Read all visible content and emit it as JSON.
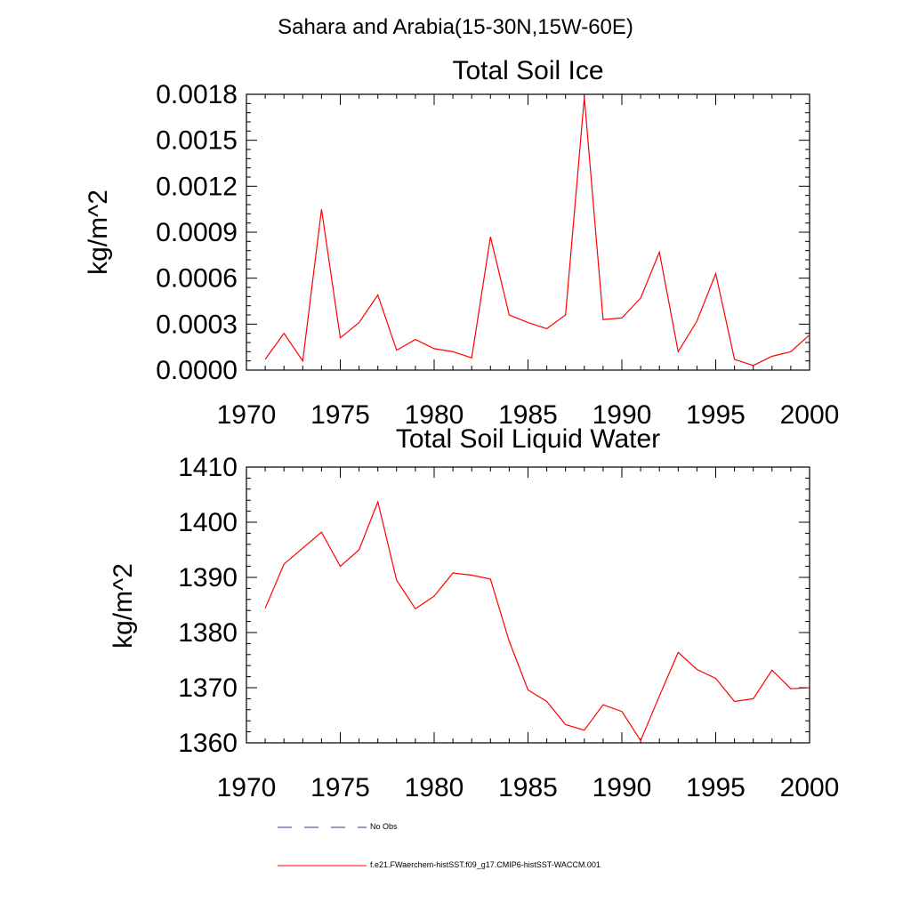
{
  "figure": {
    "title": "Sahara and Arabia(15-30N,15W-60E)"
  },
  "legend": [
    {
      "label": "No Obs",
      "color": "#333399",
      "dash": "dashed"
    },
    {
      "label": "f.e21.FWaerchem-histSST.f09_g17.CMIP6-histSST-WACCM.001",
      "color": "#ff0000",
      "dash": "solid"
    }
  ],
  "chart_data": [
    {
      "type": "line",
      "title": "Total Soil Ice",
      "xlabel": "",
      "ylabel": "kg/m^2",
      "xlim": [
        1970,
        2000
      ],
      "ylim": [
        0.0,
        0.0018
      ],
      "xticks": [
        1970,
        1975,
        1980,
        1985,
        1990,
        1995,
        2000
      ],
      "yticks": [
        "0.0000",
        "0.0003",
        "0.0006",
        "0.0009",
        "0.0012",
        "0.0015",
        "0.0018"
      ],
      "grid": false,
      "x": [
        1971,
        1972,
        1973,
        1974,
        1975,
        1976,
        1977,
        1978,
        1979,
        1980,
        1981,
        1982,
        1983,
        1984,
        1985,
        1986,
        1987,
        1988,
        1989,
        1990,
        1991,
        1992,
        1993,
        1994,
        1995,
        1996,
        1997,
        1998,
        1999,
        2000
      ],
      "series": [
        {
          "name": "f.e21.FWaerchem-histSST.f09_g17.CMIP6-histSST-WACCM.001",
          "color": "#ff0000",
          "values": [
            7e-05,
            0.00024,
            6e-05,
            0.00105,
            0.00021,
            0.00031,
            0.00049,
            0.00013,
            0.0002,
            0.00014,
            0.00012,
            8e-05,
            0.00087,
            0.00036,
            0.00031,
            0.00027,
            0.00036,
            0.00178,
            0.00033,
            0.00034,
            0.00047,
            0.00077,
            0.00012,
            0.00032,
            0.00063,
            7e-05,
            3e-05,
            9e-05,
            0.00012,
            0.00023
          ]
        }
      ]
    },
    {
      "type": "line",
      "title": "Total Soil Liquid Water",
      "xlabel": "",
      "ylabel": "kg/m^2",
      "xlim": [
        1970,
        2000
      ],
      "ylim": [
        1360,
        1410
      ],
      "xticks": [
        1970,
        1975,
        1980,
        1985,
        1990,
        1995,
        2000
      ],
      "yticks": [
        "1360",
        "1370",
        "1380",
        "1390",
        "1400",
        "1410"
      ],
      "grid": false,
      "x": [
        1971,
        1972,
        1973,
        1974,
        1975,
        1976,
        1977,
        1978,
        1979,
        1980,
        1981,
        1982,
        1983,
        1984,
        1985,
        1986,
        1987,
        1988,
        1989,
        1990,
        1991,
        1992,
        1993,
        1994,
        1995,
        1996,
        1997,
        1998,
        1999,
        2000
      ],
      "series": [
        {
          "name": "f.e21.FWaerchem-histSST.f09_g17.CMIP6-histSST-WACCM.001",
          "color": "#ff0000",
          "values": [
            1384.4,
            1392.4,
            1395.3,
            1398.2,
            1392.0,
            1395.0,
            1403.7,
            1389.5,
            1384.3,
            1386.6,
            1390.8,
            1390.4,
            1389.7,
            1378.4,
            1369.6,
            1367.5,
            1363.3,
            1362.3,
            1366.9,
            1365.7,
            1360.4,
            1368.5,
            1376.4,
            1373.3,
            1371.7,
            1367.5,
            1368.0,
            1373.2,
            1369.8,
            1370.0
          ]
        }
      ]
    }
  ]
}
